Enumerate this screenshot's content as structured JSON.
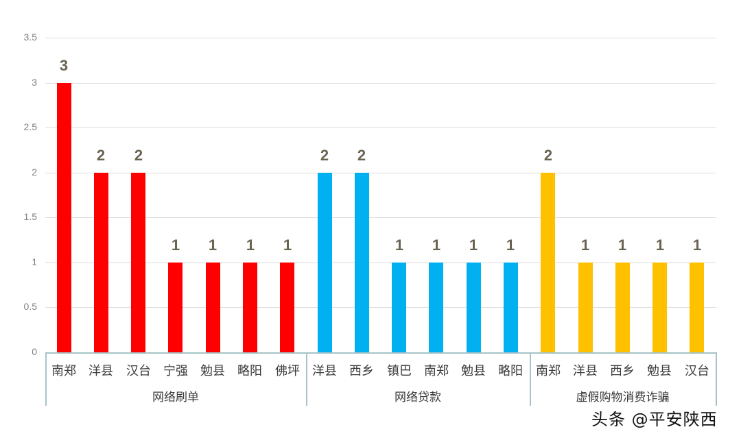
{
  "chart_data": {
    "type": "bar",
    "title": "",
    "xlabel": "",
    "ylabel": "",
    "ylim": [
      0,
      3.5
    ],
    "yticks": [
      "0",
      "0.5",
      "1",
      "1.5",
      "2",
      "2.5",
      "3",
      "3.5"
    ],
    "grid": true,
    "legend": "none",
    "data_labels": true,
    "groups": [
      {
        "name": "网络刷单",
        "color": "#ff0000",
        "categories": [
          "南郑",
          "洋县",
          "汉台",
          "宁强",
          "勉县",
          "略阳",
          "佛坪"
        ],
        "values": [
          3,
          2,
          2,
          1,
          1,
          1,
          1
        ]
      },
      {
        "name": "网络贷款",
        "color": "#00b0f0",
        "categories": [
          "洋县",
          "西乡",
          "镇巴",
          "南郑",
          "勉县",
          "略阳"
        ],
        "values": [
          2,
          2,
          1,
          1,
          1,
          1
        ]
      },
      {
        "name": "虚假购物消费诈骗",
        "color": "#ffc000",
        "categories": [
          "南郑",
          "洋县",
          "西乡",
          "勉县",
          "汉台"
        ],
        "values": [
          2,
          1,
          1,
          1,
          1
        ]
      }
    ]
  },
  "watermark": "头条 @平安陕西"
}
